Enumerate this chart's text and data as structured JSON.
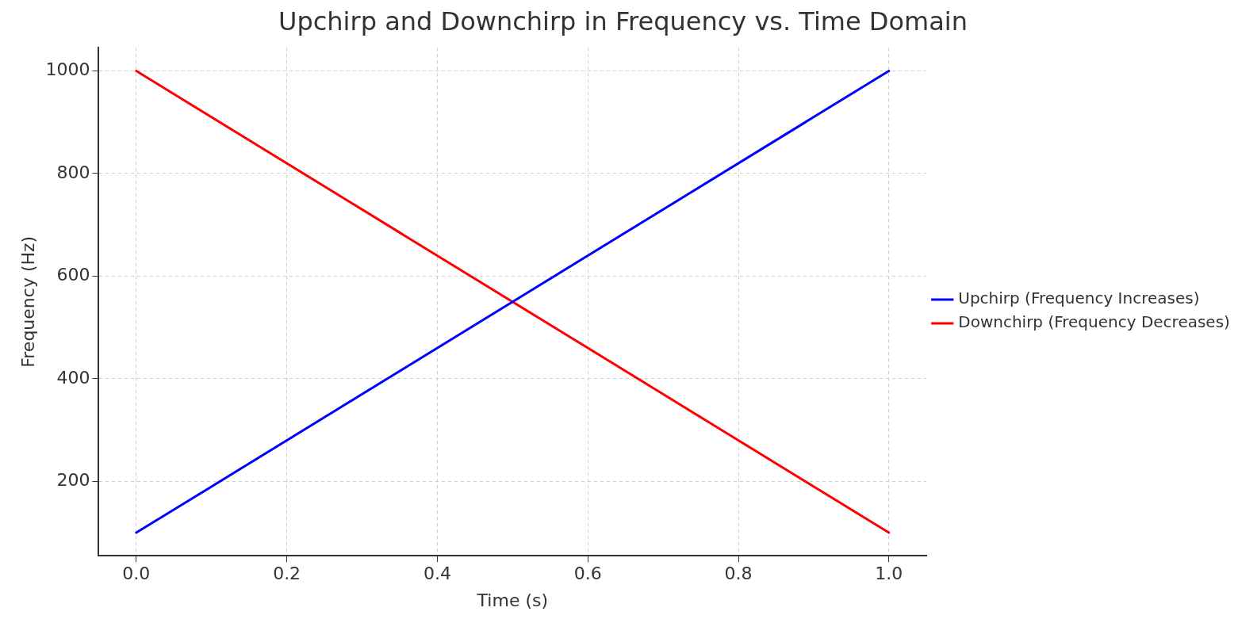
{
  "chart_data": {
    "type": "line",
    "title": "Upchirp and Downchirp in Frequency vs. Time Domain",
    "xlabel": "Time (s)",
    "ylabel": "Frequency (Hz)",
    "x": [
      0,
      1
    ],
    "series": [
      {
        "name": "Upchirp (Frequency Increases)",
        "color": "#0000ff",
        "values": [
          100,
          1000
        ]
      },
      {
        "name": "Downchirp (Frequency Decreases)",
        "color": "#ff0000",
        "values": [
          1000,
          100
        ]
      }
    ],
    "xlim": [
      -0.05,
      1.05
    ],
    "xticks": [
      {
        "value": 0,
        "label": "0.0"
      },
      {
        "value": 0.2,
        "label": "0.2"
      },
      {
        "value": 0.4,
        "label": "0.4"
      },
      {
        "value": 0.6,
        "label": "0.6"
      },
      {
        "value": 0.8,
        "label": "0.8"
      },
      {
        "value": 1,
        "label": "1.0"
      }
    ],
    "ylim": [
      55,
      1045
    ],
    "yticks": [
      200,
      400,
      600,
      800,
      1000
    ],
    "grid": true,
    "legend": "right",
    "line_style": "solid",
    "marker": "none"
  }
}
